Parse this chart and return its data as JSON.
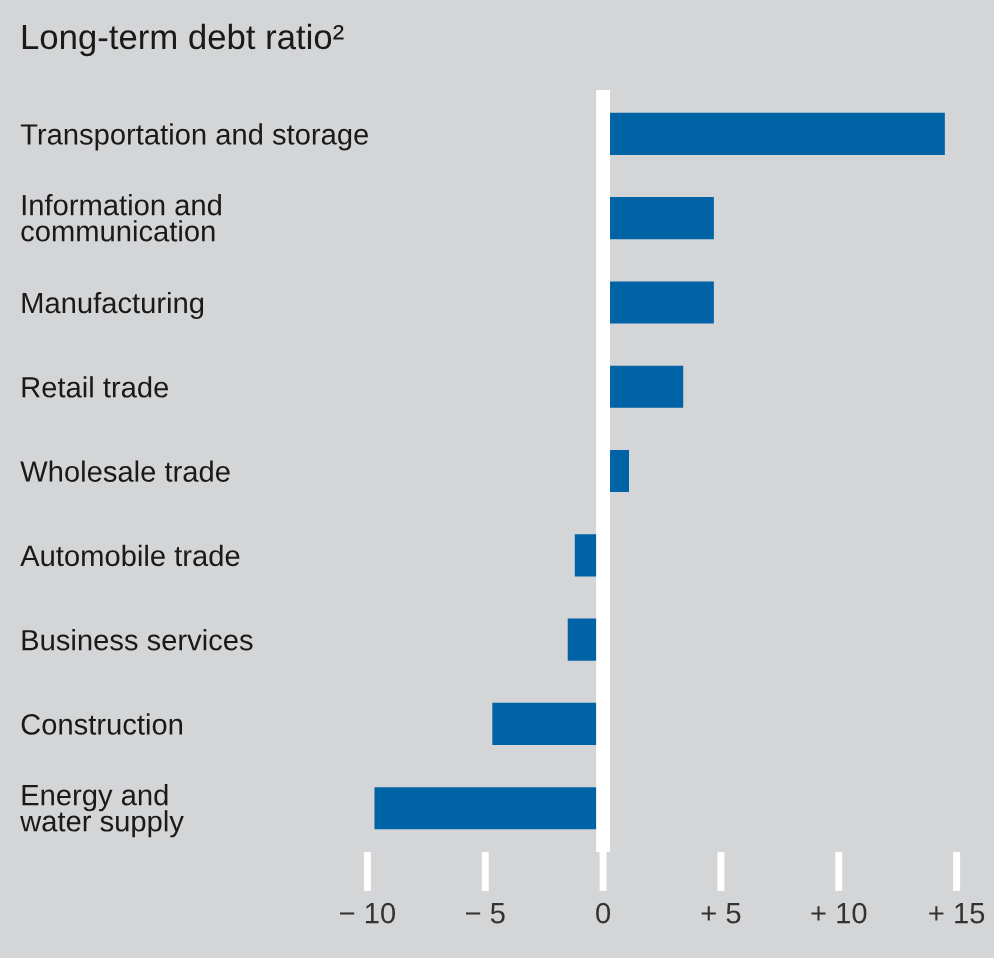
{
  "chart_data": {
    "type": "bar",
    "orientation": "horizontal",
    "title": "Long-term debt ratio²",
    "categories": [
      "Transportation and storage",
      "Information and\ncommunication",
      "Manufacturing",
      "Retail trade",
      "Wholesale trade",
      "Automobile trade",
      "Business services",
      "Construction",
      "Energy and\nwater supply"
    ],
    "values": [
      14.5,
      4.7,
      4.7,
      3.4,
      1.1,
      -1.2,
      -1.5,
      -4.7,
      -9.7
    ],
    "color": "#0063a6",
    "xlim": [
      -10,
      15
    ],
    "xticks": [
      {
        "value": -10,
        "label": "− 10"
      },
      {
        "value": -5,
        "label": "− 5"
      },
      0,
      {
        "value": 5,
        "label": "+ 5"
      },
      {
        "value": 10,
        "label": "+ 10"
      },
      {
        "value": 15,
        "label": "+ 15"
      }
    ],
    "ref_lines": [
      {
        "axis": "x",
        "value": 0,
        "color": "#ffffff"
      }
    ],
    "grid": false,
    "legend": false
  }
}
